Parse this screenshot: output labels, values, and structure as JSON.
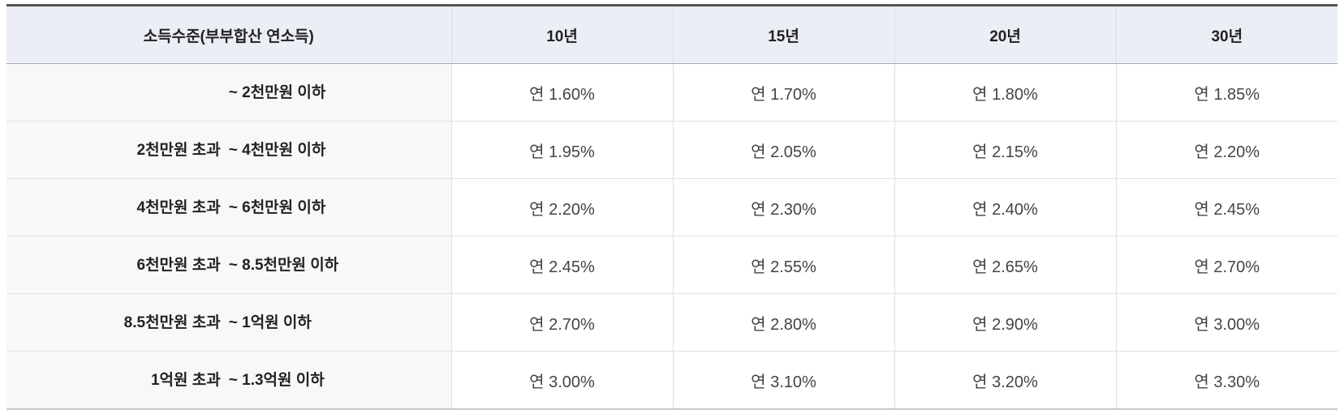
{
  "table": {
    "headers": [
      "소득수준(부부합산 연소득)",
      "10년",
      "15년",
      "20년",
      "30년"
    ],
    "rows": [
      {
        "income_from": "",
        "income_to": "~ 2천만원 이하",
        "rates": [
          "연 1.60%",
          "연 1.70%",
          "연 1.80%",
          "연 1.85%"
        ]
      },
      {
        "income_from": "2천만원 초과",
        "income_to": "~ 4천만원 이하",
        "rates": [
          "연 1.95%",
          "연 2.05%",
          "연 2.15%",
          "연 2.20%"
        ]
      },
      {
        "income_from": "4천만원 초과",
        "income_to": "~ 6천만원 이하",
        "rates": [
          "연 2.20%",
          "연 2.30%",
          "연 2.40%",
          "연 2.45%"
        ]
      },
      {
        "income_from": "6천만원 초과",
        "income_to": "~ 8.5천만원 이하",
        "rates": [
          "연 2.45%",
          "연 2.55%",
          "연 2.65%",
          "연 2.70%"
        ]
      },
      {
        "income_from": "8.5천만원 초과",
        "income_to": "~ 1억원 이하",
        "rates": [
          "연 2.70%",
          "연 2.80%",
          "연 2.90%",
          "연 3.00%"
        ]
      },
      {
        "income_from": "1억원 초과",
        "income_to": "~ 1.3억원 이하",
        "rates": [
          "연 3.00%",
          "연 3.10%",
          "연 3.20%",
          "연 3.30%"
        ]
      }
    ]
  }
}
